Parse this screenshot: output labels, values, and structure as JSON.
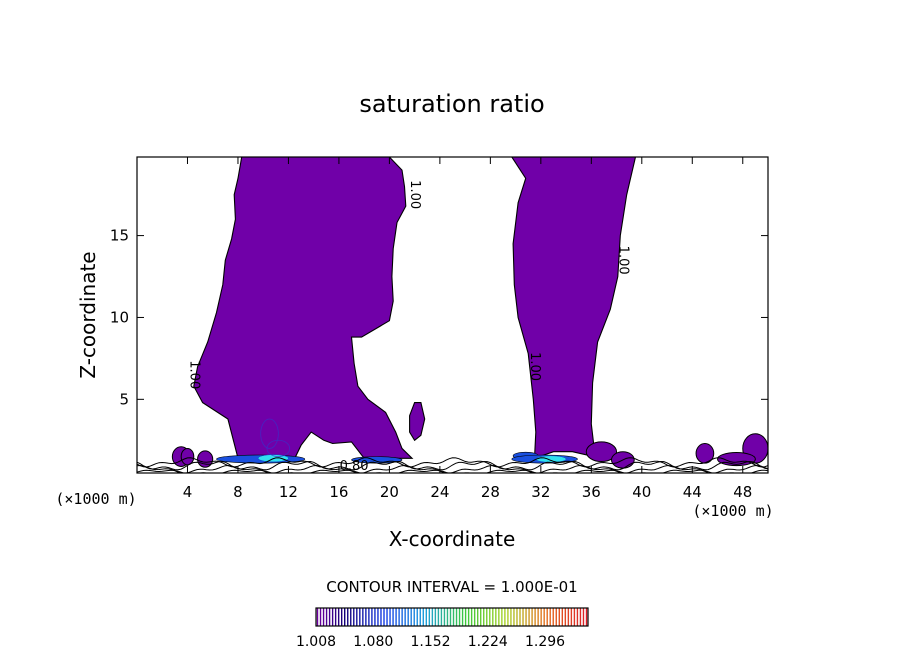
{
  "chart_data": {
    "type": "contour",
    "title": "saturation ratio",
    "xlabel": "X-coordinate",
    "ylabel": "Z-coordinate",
    "x_unit": "(×1000 m)",
    "y_unit": "(×1000 m)",
    "xlim": [
      0,
      50
    ],
    "ylim": [
      0.5,
      19.8
    ],
    "x_ticks": [
      4,
      8,
      12,
      16,
      20,
      24,
      28,
      32,
      36,
      40,
      44,
      48
    ],
    "y_ticks": [
      5,
      10,
      15
    ],
    "contour_interval_text": "CONTOUR INTERVAL = 1.000E-01",
    "fill_color": "#7000a8",
    "contour_labels": [
      {
        "text": "1.00",
        "x": 4.5,
        "z": 6.5
      },
      {
        "text": "1.00",
        "x": 22.0,
        "z": 17.5
      },
      {
        "text": "1.00",
        "x": 31.5,
        "z": 7.0
      },
      {
        "text": "1.00",
        "x": 38.5,
        "z": 13.5
      },
      {
        "text": "0.80",
        "x": 17.2,
        "z": 0.9
      }
    ],
    "colorbar": {
      "tick_labels": [
        "1.008",
        "1.080",
        "1.152",
        "1.224",
        "1.296"
      ],
      "vmin": 1.008,
      "vmax": 1.35
    },
    "regions": [
      {
        "name": "western supersaturated plume",
        "points": [
          [
            8.0,
            1.4
          ],
          [
            7.2,
            3.8
          ],
          [
            5.2,
            4.8
          ],
          [
            4.5,
            5.8
          ],
          [
            4.8,
            7.0
          ],
          [
            5.6,
            8.5
          ],
          [
            6.3,
            10.3
          ],
          [
            6.8,
            12.0
          ],
          [
            7.0,
            13.5
          ],
          [
            7.5,
            14.8
          ],
          [
            7.8,
            16.0
          ],
          [
            7.7,
            17.5
          ],
          [
            8.0,
            18.5
          ],
          [
            8.3,
            19.8
          ],
          [
            20.0,
            19.8
          ],
          [
            21.0,
            19.0
          ],
          [
            21.2,
            18.0
          ],
          [
            21.3,
            16.8
          ],
          [
            20.6,
            15.8
          ],
          [
            20.3,
            14.2
          ],
          [
            20.2,
            12.5
          ],
          [
            20.3,
            11.0
          ],
          [
            20.0,
            9.8
          ],
          [
            17.8,
            8.8
          ],
          [
            17.0,
            8.8
          ],
          [
            17.2,
            7.2
          ],
          [
            17.5,
            5.8
          ],
          [
            18.3,
            5.0
          ],
          [
            19.7,
            4.2
          ],
          [
            20.5,
            3.0
          ],
          [
            21.0,
            2.0
          ],
          [
            21.8,
            1.4
          ],
          [
            18.0,
            1.4
          ],
          [
            17.0,
            2.4
          ],
          [
            15.5,
            2.3
          ],
          [
            14.8,
            2.5
          ],
          [
            13.8,
            3.0
          ],
          [
            13.0,
            2.2
          ],
          [
            12.5,
            1.4
          ]
        ]
      },
      {
        "name": "eastern supersaturated column",
        "points": [
          [
            29.7,
            19.8
          ],
          [
            39.5,
            19.8
          ],
          [
            38.8,
            17.5
          ],
          [
            38.3,
            15.0
          ],
          [
            38.1,
            12.5
          ],
          [
            37.5,
            10.5
          ],
          [
            36.5,
            8.5
          ],
          [
            36.1,
            6.0
          ],
          [
            36.0,
            3.5
          ],
          [
            36.2,
            2.2
          ],
          [
            36.8,
            1.4
          ],
          [
            34.5,
            1.8
          ],
          [
            33.0,
            1.8
          ],
          [
            31.5,
            1.4
          ],
          [
            31.6,
            3.0
          ],
          [
            31.4,
            5.0
          ],
          [
            31.0,
            7.8
          ],
          [
            30.2,
            10.0
          ],
          [
            29.9,
            12.0
          ],
          [
            29.8,
            14.5
          ],
          [
            30.2,
            17.0
          ],
          [
            30.8,
            18.5
          ]
        ]
      },
      {
        "name": "small cell",
        "points": [
          [
            22.0,
            2.5
          ],
          [
            22.5,
            2.8
          ],
          [
            22.8,
            3.8
          ],
          [
            22.5,
            4.8
          ],
          [
            22.0,
            4.8
          ],
          [
            21.6,
            4.0
          ],
          [
            21.6,
            3.0
          ]
        ]
      }
    ],
    "surface_cells": [
      [
        3.5,
        1.5,
        0.7,
        0.6
      ],
      [
        4.0,
        1.5,
        0.5,
        0.5
      ],
      [
        5.4,
        1.35,
        0.6,
        0.5
      ],
      [
        36.8,
        1.8,
        1.2,
        0.6
      ],
      [
        38.5,
        1.3,
        0.9,
        0.5
      ],
      [
        45.0,
        1.7,
        0.7,
        0.6
      ],
      [
        49.0,
        2.0,
        1.0,
        0.9
      ],
      [
        47.5,
        1.35,
        1.5,
        0.4
      ]
    ],
    "high_cells": [
      [
        9.8,
        1.35,
        3.5,
        0.25
      ],
      [
        30.8,
        1.55,
        1.0,
        0.22
      ],
      [
        32.3,
        1.35,
        2.6,
        0.25
      ],
      [
        19.0,
        1.3,
        2.0,
        0.2
      ]
    ],
    "peak_cells": [
      [
        10.8,
        1.4,
        1.2,
        0.22
      ],
      [
        32.8,
        1.35,
        1.2,
        0.2
      ]
    ],
    "surface_lines": [
      {
        "base": 0.55,
        "amp": 0.1
      },
      {
        "base": 0.72,
        "amp": 0.15
      },
      {
        "base": 0.95,
        "amp": 0.2
      },
      {
        "base": 1.15,
        "amp": 0.18
      }
    ]
  }
}
